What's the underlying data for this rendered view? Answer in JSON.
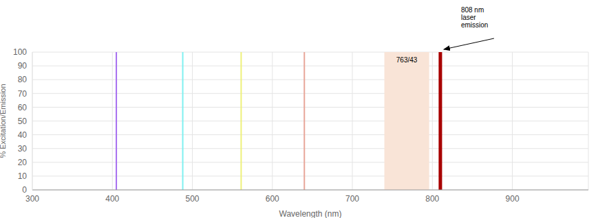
{
  "chart_data": {
    "type": "line",
    "x_label": "Wavelength (nm)",
    "y_label": "% Excitation/Emission",
    "xlim": [
      300,
      995
    ],
    "xticks": [
      300,
      400,
      500,
      600,
      700,
      800,
      900
    ],
    "ylim": [
      0,
      100
    ],
    "yticks": [
      0,
      10,
      20,
      30,
      40,
      50,
      60,
      70,
      80,
      90,
      100
    ],
    "grid": true,
    "series": [
      {
        "color": "#a66ef0",
        "line_style": "solid",
        "x": [
          405,
          405
        ],
        "values": [
          0,
          100
        ]
      },
      {
        "color": "#7ff0f0",
        "line_style": "solid",
        "x": [
          488,
          488
        ],
        "values": [
          0,
          100
        ]
      },
      {
        "color": "#eef07a",
        "line_style": "solid",
        "x": [
          561,
          561
        ],
        "values": [
          0,
          100
        ]
      },
      {
        "color": "#e8a598",
        "line_style": "solid",
        "x": [
          640,
          640
        ],
        "values": [
          0,
          100
        ]
      },
      {
        "color": "#a80000",
        "line_style": "solid",
        "x": [
          810,
          810
        ],
        "values": [
          0,
          100
        ]
      }
    ],
    "band": {
      "label": "763/43",
      "x": [
        740,
        796
      ],
      "values": [
        0,
        100
      ],
      "color": "#f9e4d7"
    },
    "annotation": {
      "text": "808 nm\nlaser\nemission",
      "x": 810,
      "y": 100
    }
  }
}
